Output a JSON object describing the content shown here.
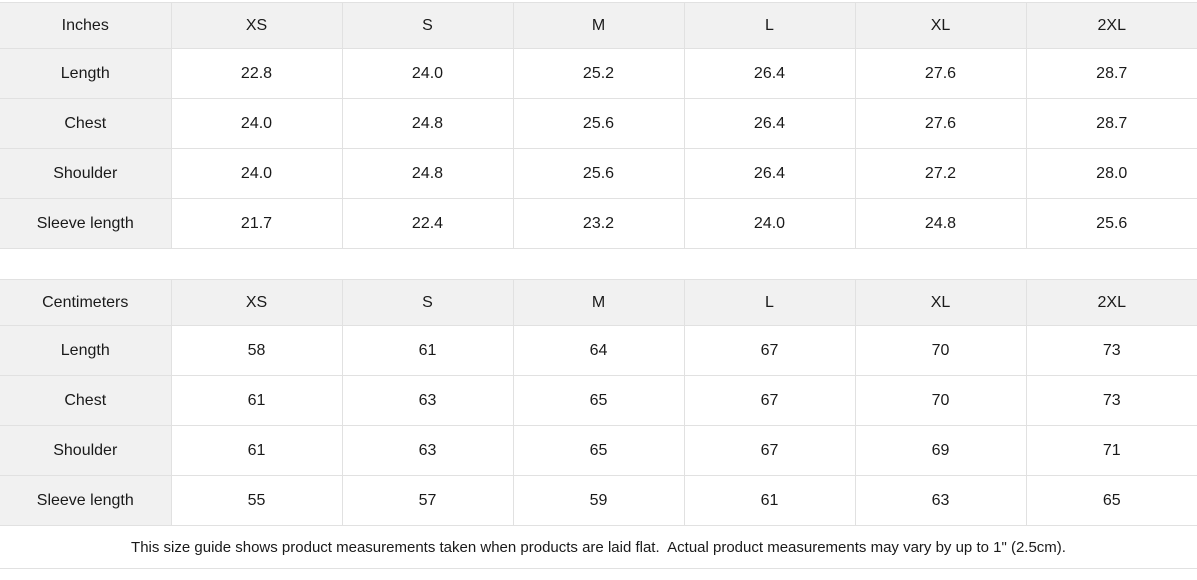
{
  "colors": {
    "header_background": "#f1f1f1",
    "border": "#e1e1e1",
    "text": "#1a1a1a",
    "page_background": "#ffffff"
  },
  "chart_data": [
    {
      "type": "table",
      "title": "Inches",
      "columns": [
        "XS",
        "S",
        "M",
        "L",
        "XL",
        "2XL"
      ],
      "rows": [
        {
          "label": "Length",
          "values": [
            "22.8",
            "24.0",
            "25.2",
            "26.4",
            "27.6",
            "28.7"
          ]
        },
        {
          "label": "Chest",
          "values": [
            "24.0",
            "24.8",
            "25.6",
            "26.4",
            "27.6",
            "28.7"
          ]
        },
        {
          "label": "Shoulder",
          "values": [
            "24.0",
            "24.8",
            "25.6",
            "26.4",
            "27.2",
            "28.0"
          ]
        },
        {
          "label": "Sleeve length",
          "values": [
            "21.7",
            "22.4",
            "23.2",
            "24.0",
            "24.8",
            "25.6"
          ]
        }
      ]
    },
    {
      "type": "table",
      "title": "Centimeters",
      "columns": [
        "XS",
        "S",
        "M",
        "L",
        "XL",
        "2XL"
      ],
      "rows": [
        {
          "label": "Length",
          "values": [
            "58",
            "61",
            "64",
            "67",
            "70",
            "73"
          ]
        },
        {
          "label": "Chest",
          "values": [
            "61",
            "63",
            "65",
            "67",
            "70",
            "73"
          ]
        },
        {
          "label": "Shoulder",
          "values": [
            "61",
            "63",
            "65",
            "67",
            "69",
            "71"
          ]
        },
        {
          "label": "Sleeve length",
          "values": [
            "55",
            "57",
            "59",
            "61",
            "63",
            "65"
          ]
        }
      ]
    }
  ],
  "footer": {
    "note": "This size guide shows product measurements taken when products are laid flat.  Actual product measurements may vary by up to 1\" (2.5cm)."
  }
}
